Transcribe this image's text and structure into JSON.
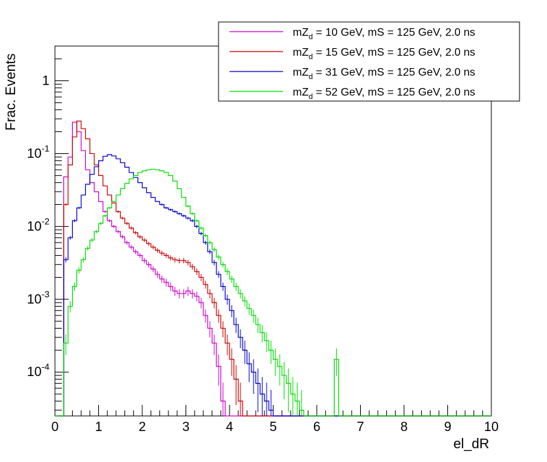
{
  "chart_data": {
    "type": "line",
    "style": "step-histogram-with-error-bars",
    "title": "",
    "xlabel": "el_dR",
    "ylabel": "Frac. Events",
    "xlim": [
      0,
      10
    ],
    "ylim": [
      2.5e-05,
      3.0
    ],
    "yscale": "log",
    "grid": false,
    "legend_position": "top-right",
    "x_ticks": [
      "0",
      "1",
      "2",
      "3",
      "4",
      "5",
      "6",
      "7",
      "8",
      "9",
      "10"
    ],
    "y_ticks": [
      {
        "value": 0.0001,
        "base": "10",
        "exp": "-4"
      },
      {
        "value": 0.001,
        "base": "10",
        "exp": "-3"
      },
      {
        "value": 0.01,
        "base": "10",
        "exp": "-2"
      },
      {
        "value": 0.1,
        "base": "10",
        "exp": "-1"
      },
      {
        "value": 1,
        "base": "1",
        "exp": ""
      }
    ],
    "bin_width": 0.1,
    "series": [
      {
        "name": "mZd = 10 GeV, mS = 125 GeV, 2.0 ns",
        "legend_prefix": "mZ",
        "legend_sub": "d",
        "legend_suffix": " = 10 GeV, mS = 125 GeV, 2.0 ns",
        "color": "#cc00cc",
        "bins_start": 0.1,
        "values": [
          0.0,
          0.048,
          0.09,
          0.27,
          0.2,
          0.11,
          0.06,
          0.04,
          0.03,
          0.022,
          0.016,
          0.012,
          0.01,
          0.0085,
          0.0072,
          0.006,
          0.0052,
          0.0045,
          0.004,
          0.0034,
          0.003,
          0.0026,
          0.0022,
          0.0019,
          0.0017,
          0.0015,
          0.0013,
          0.0012,
          0.0012,
          0.0013,
          0.0012,
          0.0011,
          0.0009,
          0.0006,
          0.0004,
          0.00025,
          0.00012,
          4e-05,
          0.0,
          0.0,
          0.0,
          0.0,
          0.0,
          0.0
        ]
      },
      {
        "name": "mZd = 15 GeV, mS = 125 GeV, 2.0 ns",
        "legend_prefix": "mZ",
        "legend_sub": "d",
        "legend_suffix": " = 15 GeV, mS = 125 GeV, 2.0 ns",
        "color": "#cc0000",
        "bins_start": 0.1,
        "values": [
          0.0,
          0.02,
          0.07,
          0.17,
          0.28,
          0.22,
          0.16,
          0.1,
          0.07,
          0.05,
          0.036,
          0.027,
          0.021,
          0.016,
          0.013,
          0.011,
          0.0095,
          0.0082,
          0.0072,
          0.0065,
          0.0058,
          0.0052,
          0.0047,
          0.0043,
          0.004,
          0.0037,
          0.0035,
          0.0034,
          0.0034,
          0.0032,
          0.0028,
          0.0024,
          0.002,
          0.0016,
          0.0012,
          0.0009,
          0.0006,
          0.0004,
          0.00025,
          0.00015,
          8e-05,
          4e-05,
          0.0,
          0.0,
          0.0
        ]
      },
      {
        "name": "mZd = 31 GeV, mS = 125 GeV, 2.0 ns",
        "legend_prefix": "mZ",
        "legend_sub": "d",
        "legend_suffix": " = 31 GeV, mS = 125 GeV, 2.0 ns",
        "color": "#0000cc",
        "bins_start": 0.1,
        "values": [
          0.0,
          0.0035,
          0.007,
          0.012,
          0.018,
          0.027,
          0.038,
          0.052,
          0.066,
          0.08,
          0.092,
          0.097,
          0.093,
          0.085,
          0.075,
          0.065,
          0.055,
          0.047,
          0.04,
          0.034,
          0.029,
          0.025,
          0.022,
          0.02,
          0.018,
          0.017,
          0.016,
          0.015,
          0.014,
          0.013,
          0.012,
          0.01,
          0.008,
          0.006,
          0.0045,
          0.0032,
          0.0022,
          0.0015,
          0.001,
          0.0007,
          0.00045,
          0.0003,
          0.0002,
          0.00013,
          0.0001,
          7e-05,
          5e-05,
          4e-05,
          3e-05,
          0.0,
          0.0
        ]
      },
      {
        "name": "mZd = 52 GeV, mS = 125 GeV, 2.0 ns",
        "legend_prefix": "mZ",
        "legend_sub": "d",
        "legend_suffix": " = 52 GeV, mS = 125 GeV, 2.0 ns",
        "color": "#00dd00",
        "bins_start": 0.1,
        "values": [
          0.0,
          0.00025,
          0.0008,
          0.0015,
          0.0025,
          0.0035,
          0.005,
          0.0065,
          0.0085,
          0.011,
          0.014,
          0.018,
          0.022,
          0.027,
          0.033,
          0.039,
          0.045,
          0.05,
          0.055,
          0.058,
          0.06,
          0.061,
          0.06,
          0.058,
          0.055,
          0.05,
          0.042,
          0.033,
          0.025,
          0.019,
          0.015,
          0.012,
          0.0095,
          0.0075,
          0.006,
          0.0048,
          0.0038,
          0.003,
          0.0024,
          0.0019,
          0.0015,
          0.0012,
          0.00095,
          0.00075,
          0.0006,
          0.00045,
          0.00035,
          0.00027,
          0.0002,
          0.00015,
          0.00012,
          9e-05,
          7e-05,
          5e-05,
          4e-05,
          3e-05,
          0.0,
          0.0,
          0.0,
          0.0,
          0.0,
          0.0,
          0.0,
          0.00015,
          0.0,
          0.0,
          0.0,
          0.0
        ]
      }
    ]
  }
}
